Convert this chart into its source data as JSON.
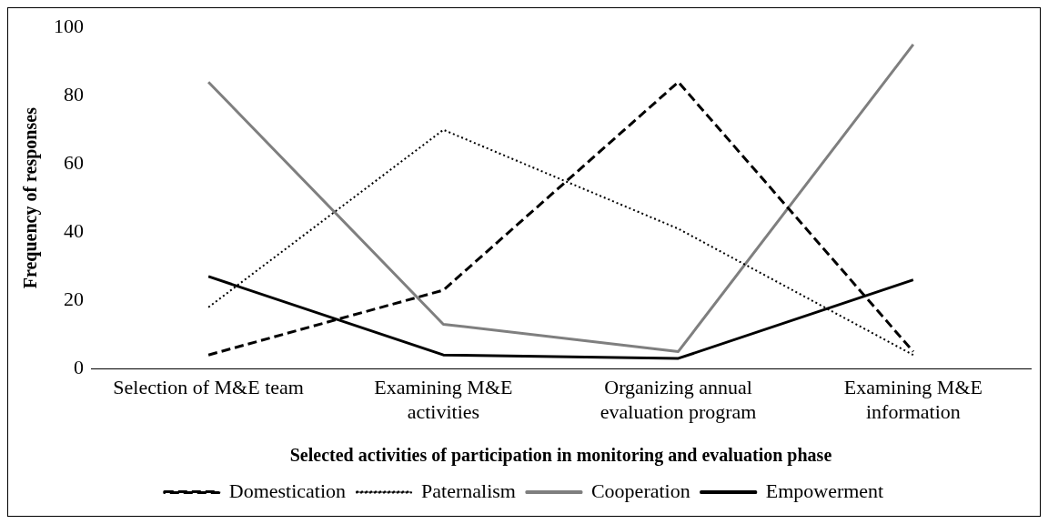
{
  "chart_data": {
    "type": "line",
    "xlabel": "Selected activities of participation in monitoring and evaluation phase",
    "ylabel": "Frequency of responses",
    "categories": [
      "Selection of M&E team",
      "Examining M&E activities",
      "Organizing annual evaluation program",
      "Examining M&E information"
    ],
    "series": [
      {
        "name": "Domestication",
        "color": "#000000",
        "line_style": "dashed",
        "values": [
          4,
          23,
          84,
          5
        ]
      },
      {
        "name": "Paternalism",
        "color": "#000000",
        "line_style": "dotted",
        "values": [
          18,
          70,
          41,
          4
        ]
      },
      {
        "name": "Cooperation",
        "color": "#7f7f7f",
        "line_style": "solid",
        "values": [
          84,
          13,
          5,
          95
        ]
      },
      {
        "name": "Empowerment",
        "color": "#000000",
        "line_style": "solid",
        "values": [
          27,
          4,
          3,
          26
        ]
      }
    ],
    "ylim": [
      0,
      100
    ],
    "yticks": [
      0,
      20,
      40,
      60,
      80,
      100
    ],
    "grid": false,
    "legend": "bottom",
    "marker": "none"
  }
}
